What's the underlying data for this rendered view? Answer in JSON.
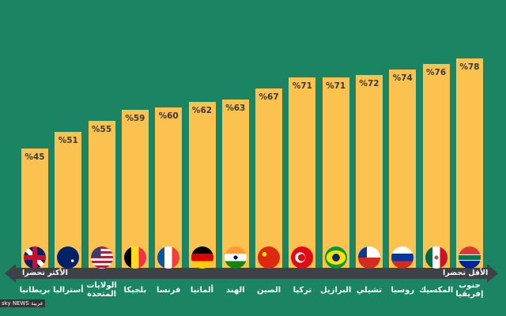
{
  "chart_data": {
    "type": "bar",
    "title": "",
    "xlabel": "",
    "ylabel": "",
    "ylim": [
      0,
      80
    ],
    "value_prefix": "%",
    "categories": [
      "بريطانيا",
      "أستراليا",
      "الولايات المتحدة",
      "بلجيكا",
      "فرنسا",
      "ألمانيا",
      "الهند",
      "الصين",
      "تركيا",
      "البرازيل",
      "تشيلي",
      "روسيا",
      "المكسيك",
      "جنوب إفريقيا"
    ],
    "values": [
      45,
      51,
      55,
      59,
      60,
      62,
      63,
      67,
      71,
      71,
      72,
      74,
      76,
      78
    ],
    "arrow_left_label": "الأكثر تحضرا",
    "arrow_right_label": "الأقل تحضرا",
    "colors": {
      "background": "#1b8462",
      "bar": "#fcc250",
      "arrow": "#3e4248"
    }
  },
  "flags": [
    {
      "country": "uk",
      "bg": "radial-gradient(circle,#c8102e 18%,transparent 19%),linear-gradient(0deg,transparent 40%,#c8102e 40%,#c8102e 60%,transparent 60%),linear-gradient(90deg,transparent 40%,#c8102e 40%,#c8102e 60%,transparent 60%),linear-gradient(45deg,#012169 42%,#fff 42%,#fff 58%,#012169 58%)"
    },
    {
      "country": "australia",
      "bg": "radial-gradient(circle at 70% 65%,#fff 6%,transparent 7%),linear-gradient(#012169,#012169)"
    },
    {
      "country": "usa",
      "bg": "linear-gradient(90deg,#3c3b6e 45%,transparent 45%) 0 0/100% 50% no-repeat,repeating-linear-gradient(180deg,#b22234 0 3px,#fff 3px 6px)"
    },
    {
      "country": "belgium",
      "bg": "linear-gradient(90deg,#000 33%,#fdda24 33%,#fdda24 66%,#ef3340 66%)"
    },
    {
      "country": "france",
      "bg": "linear-gradient(90deg,#0055a4 33%,#fff 33%,#fff 66%,#ef4135 66%)"
    },
    {
      "country": "germany",
      "bg": "linear-gradient(180deg,#000 33%,#dd0000 33%,#dd0000 66%,#ffce00 66%)"
    },
    {
      "country": "india",
      "bg": "radial-gradient(circle,#000080 12%,transparent 13%),linear-gradient(180deg,#ff9933 33%,#fff 33%,#fff 66%,#138808 66%)"
    },
    {
      "country": "china",
      "bg": "radial-gradient(circle at 30% 35%,#ffde00 10%,transparent 11%),linear-gradient(#de2910,#de2910)"
    },
    {
      "country": "turkey",
      "bg": "radial-gradient(circle at 48% 50%,#e30a17 22%,transparent 23%),radial-gradient(circle at 42% 50%,#fff 30%,transparent 31%),linear-gradient(#e30a17,#e30a17)"
    },
    {
      "country": "brazil",
      "bg": "radial-gradient(circle,#002776 24%,transparent 25%),radial-gradient(ellipse 48% 35%,#fedf00 90%,transparent 92%),linear-gradient(#009c3b,#009c3b)"
    },
    {
      "country": "chile",
      "bg": "linear-gradient(90deg,#0039a6 40%,transparent 40%) 0 0/100% 50% no-repeat,linear-gradient(180deg,#fff 50%,#d52b1e 50%)"
    },
    {
      "country": "russia",
      "bg": "linear-gradient(180deg,#fff 33%,#0039a6 33%,#0039a6 66%,#d52b1e 66%)"
    },
    {
      "country": "mexico",
      "bg": "radial-gradient(circle,#8c6a3a 12%,transparent 13%),linear-gradient(90deg,#006847 33%,#fff 33%,#fff 66%,#ce1126 66%)"
    },
    {
      "country": "south-africa",
      "bg": "linear-gradient(180deg,#de3831 35%,#fff 35%,#fff 40%,#007a4d 40%,#007a4d 60%,#fff 60%,#fff 65%,#002395 65%)"
    }
  ],
  "branding": {
    "logo": "sky NEWS عربية"
  }
}
